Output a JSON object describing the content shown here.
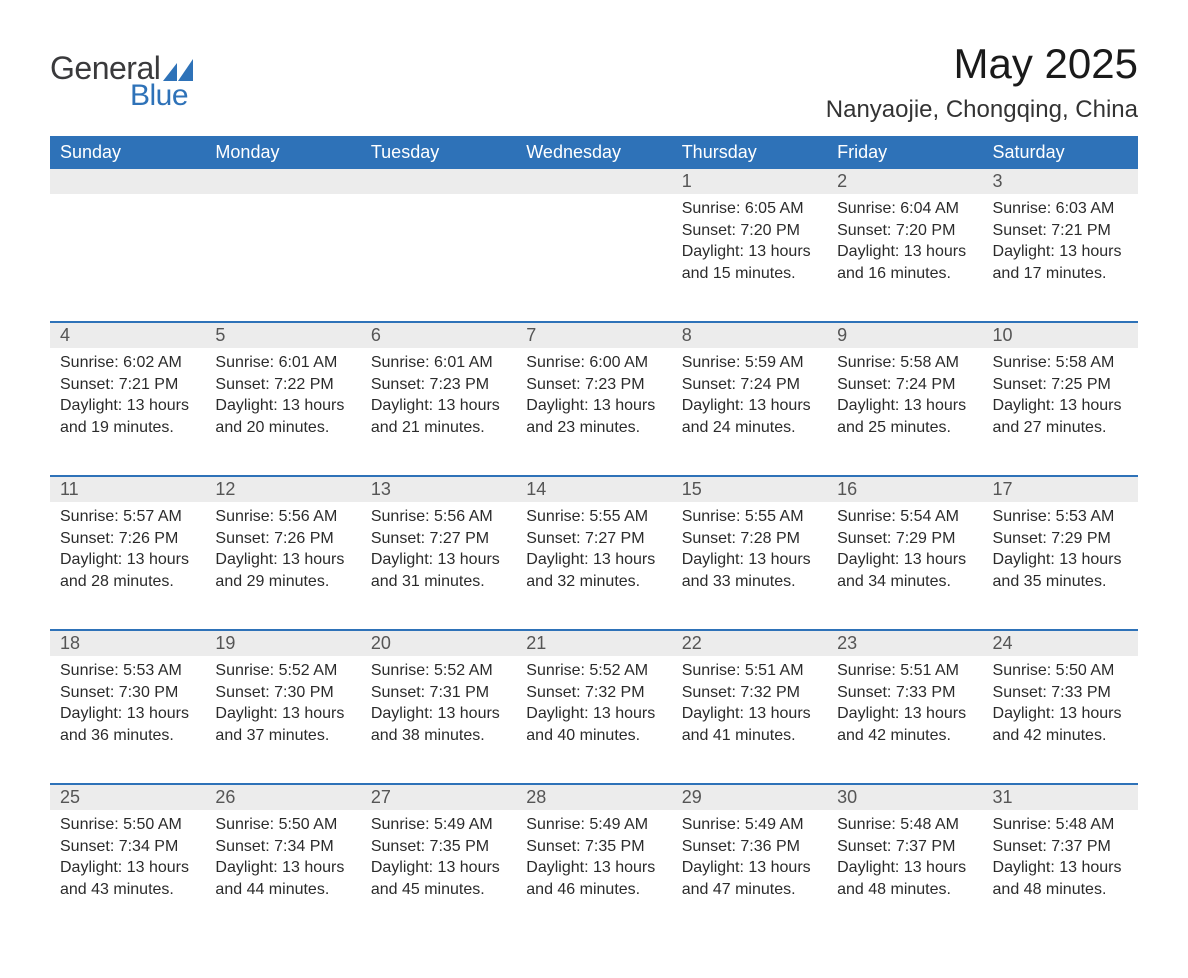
{
  "brand": {
    "general": "General",
    "blue": "Blue",
    "accent": "#2e72b8",
    "text": "#3a3a3c"
  },
  "title": "May 2025",
  "location": "Nanyaojie, Chongqing, China",
  "weekday_labels": [
    "Sunday",
    "Monday",
    "Tuesday",
    "Wednesday",
    "Thursday",
    "Friday",
    "Saturday"
  ],
  "colors": {
    "header_bg": "#2e72b8",
    "header_text": "#ffffff",
    "daynum_bg": "#ececec",
    "daynum_text": "#555555",
    "row_border": "#2e72b8",
    "body_text": "#2b2b2b",
    "page_bg": "#ffffff"
  },
  "fonts": {
    "month_title_size": 42,
    "location_size": 24,
    "weekday_size": 18,
    "daynum_size": 18,
    "body_size": 16
  },
  "label_prefix": {
    "sunrise": "Sunrise: ",
    "sunset": "Sunset: ",
    "daylight": "Daylight: "
  },
  "weeks": [
    [
      null,
      null,
      null,
      null,
      {
        "n": "1",
        "sunrise": "6:05 AM",
        "sunset": "7:20 PM",
        "daylight": "13 hours and 15 minutes."
      },
      {
        "n": "2",
        "sunrise": "6:04 AM",
        "sunset": "7:20 PM",
        "daylight": "13 hours and 16 minutes."
      },
      {
        "n": "3",
        "sunrise": "6:03 AM",
        "sunset": "7:21 PM",
        "daylight": "13 hours and 17 minutes."
      }
    ],
    [
      {
        "n": "4",
        "sunrise": "6:02 AM",
        "sunset": "7:21 PM",
        "daylight": "13 hours and 19 minutes."
      },
      {
        "n": "5",
        "sunrise": "6:01 AM",
        "sunset": "7:22 PM",
        "daylight": "13 hours and 20 minutes."
      },
      {
        "n": "6",
        "sunrise": "6:01 AM",
        "sunset": "7:23 PM",
        "daylight": "13 hours and 21 minutes."
      },
      {
        "n": "7",
        "sunrise": "6:00 AM",
        "sunset": "7:23 PM",
        "daylight": "13 hours and 23 minutes."
      },
      {
        "n": "8",
        "sunrise": "5:59 AM",
        "sunset": "7:24 PM",
        "daylight": "13 hours and 24 minutes."
      },
      {
        "n": "9",
        "sunrise": "5:58 AM",
        "sunset": "7:24 PM",
        "daylight": "13 hours and 25 minutes."
      },
      {
        "n": "10",
        "sunrise": "5:58 AM",
        "sunset": "7:25 PM",
        "daylight": "13 hours and 27 minutes."
      }
    ],
    [
      {
        "n": "11",
        "sunrise": "5:57 AM",
        "sunset": "7:26 PM",
        "daylight": "13 hours and 28 minutes."
      },
      {
        "n": "12",
        "sunrise": "5:56 AM",
        "sunset": "7:26 PM",
        "daylight": "13 hours and 29 minutes."
      },
      {
        "n": "13",
        "sunrise": "5:56 AM",
        "sunset": "7:27 PM",
        "daylight": "13 hours and 31 minutes."
      },
      {
        "n": "14",
        "sunrise": "5:55 AM",
        "sunset": "7:27 PM",
        "daylight": "13 hours and 32 minutes."
      },
      {
        "n": "15",
        "sunrise": "5:55 AM",
        "sunset": "7:28 PM",
        "daylight": "13 hours and 33 minutes."
      },
      {
        "n": "16",
        "sunrise": "5:54 AM",
        "sunset": "7:29 PM",
        "daylight": "13 hours and 34 minutes."
      },
      {
        "n": "17",
        "sunrise": "5:53 AM",
        "sunset": "7:29 PM",
        "daylight": "13 hours and 35 minutes."
      }
    ],
    [
      {
        "n": "18",
        "sunrise": "5:53 AM",
        "sunset": "7:30 PM",
        "daylight": "13 hours and 36 minutes."
      },
      {
        "n": "19",
        "sunrise": "5:52 AM",
        "sunset": "7:30 PM",
        "daylight": "13 hours and 37 minutes."
      },
      {
        "n": "20",
        "sunrise": "5:52 AM",
        "sunset": "7:31 PM",
        "daylight": "13 hours and 38 minutes."
      },
      {
        "n": "21",
        "sunrise": "5:52 AM",
        "sunset": "7:32 PM",
        "daylight": "13 hours and 40 minutes."
      },
      {
        "n": "22",
        "sunrise": "5:51 AM",
        "sunset": "7:32 PM",
        "daylight": "13 hours and 41 minutes."
      },
      {
        "n": "23",
        "sunrise": "5:51 AM",
        "sunset": "7:33 PM",
        "daylight": "13 hours and 42 minutes."
      },
      {
        "n": "24",
        "sunrise": "5:50 AM",
        "sunset": "7:33 PM",
        "daylight": "13 hours and 42 minutes."
      }
    ],
    [
      {
        "n": "25",
        "sunrise": "5:50 AM",
        "sunset": "7:34 PM",
        "daylight": "13 hours and 43 minutes."
      },
      {
        "n": "26",
        "sunrise": "5:50 AM",
        "sunset": "7:34 PM",
        "daylight": "13 hours and 44 minutes."
      },
      {
        "n": "27",
        "sunrise": "5:49 AM",
        "sunset": "7:35 PM",
        "daylight": "13 hours and 45 minutes."
      },
      {
        "n": "28",
        "sunrise": "5:49 AM",
        "sunset": "7:35 PM",
        "daylight": "13 hours and 46 minutes."
      },
      {
        "n": "29",
        "sunrise": "5:49 AM",
        "sunset": "7:36 PM",
        "daylight": "13 hours and 47 minutes."
      },
      {
        "n": "30",
        "sunrise": "5:48 AM",
        "sunset": "7:37 PM",
        "daylight": "13 hours and 48 minutes."
      },
      {
        "n": "31",
        "sunrise": "5:48 AM",
        "sunset": "7:37 PM",
        "daylight": "13 hours and 48 minutes."
      }
    ]
  ]
}
